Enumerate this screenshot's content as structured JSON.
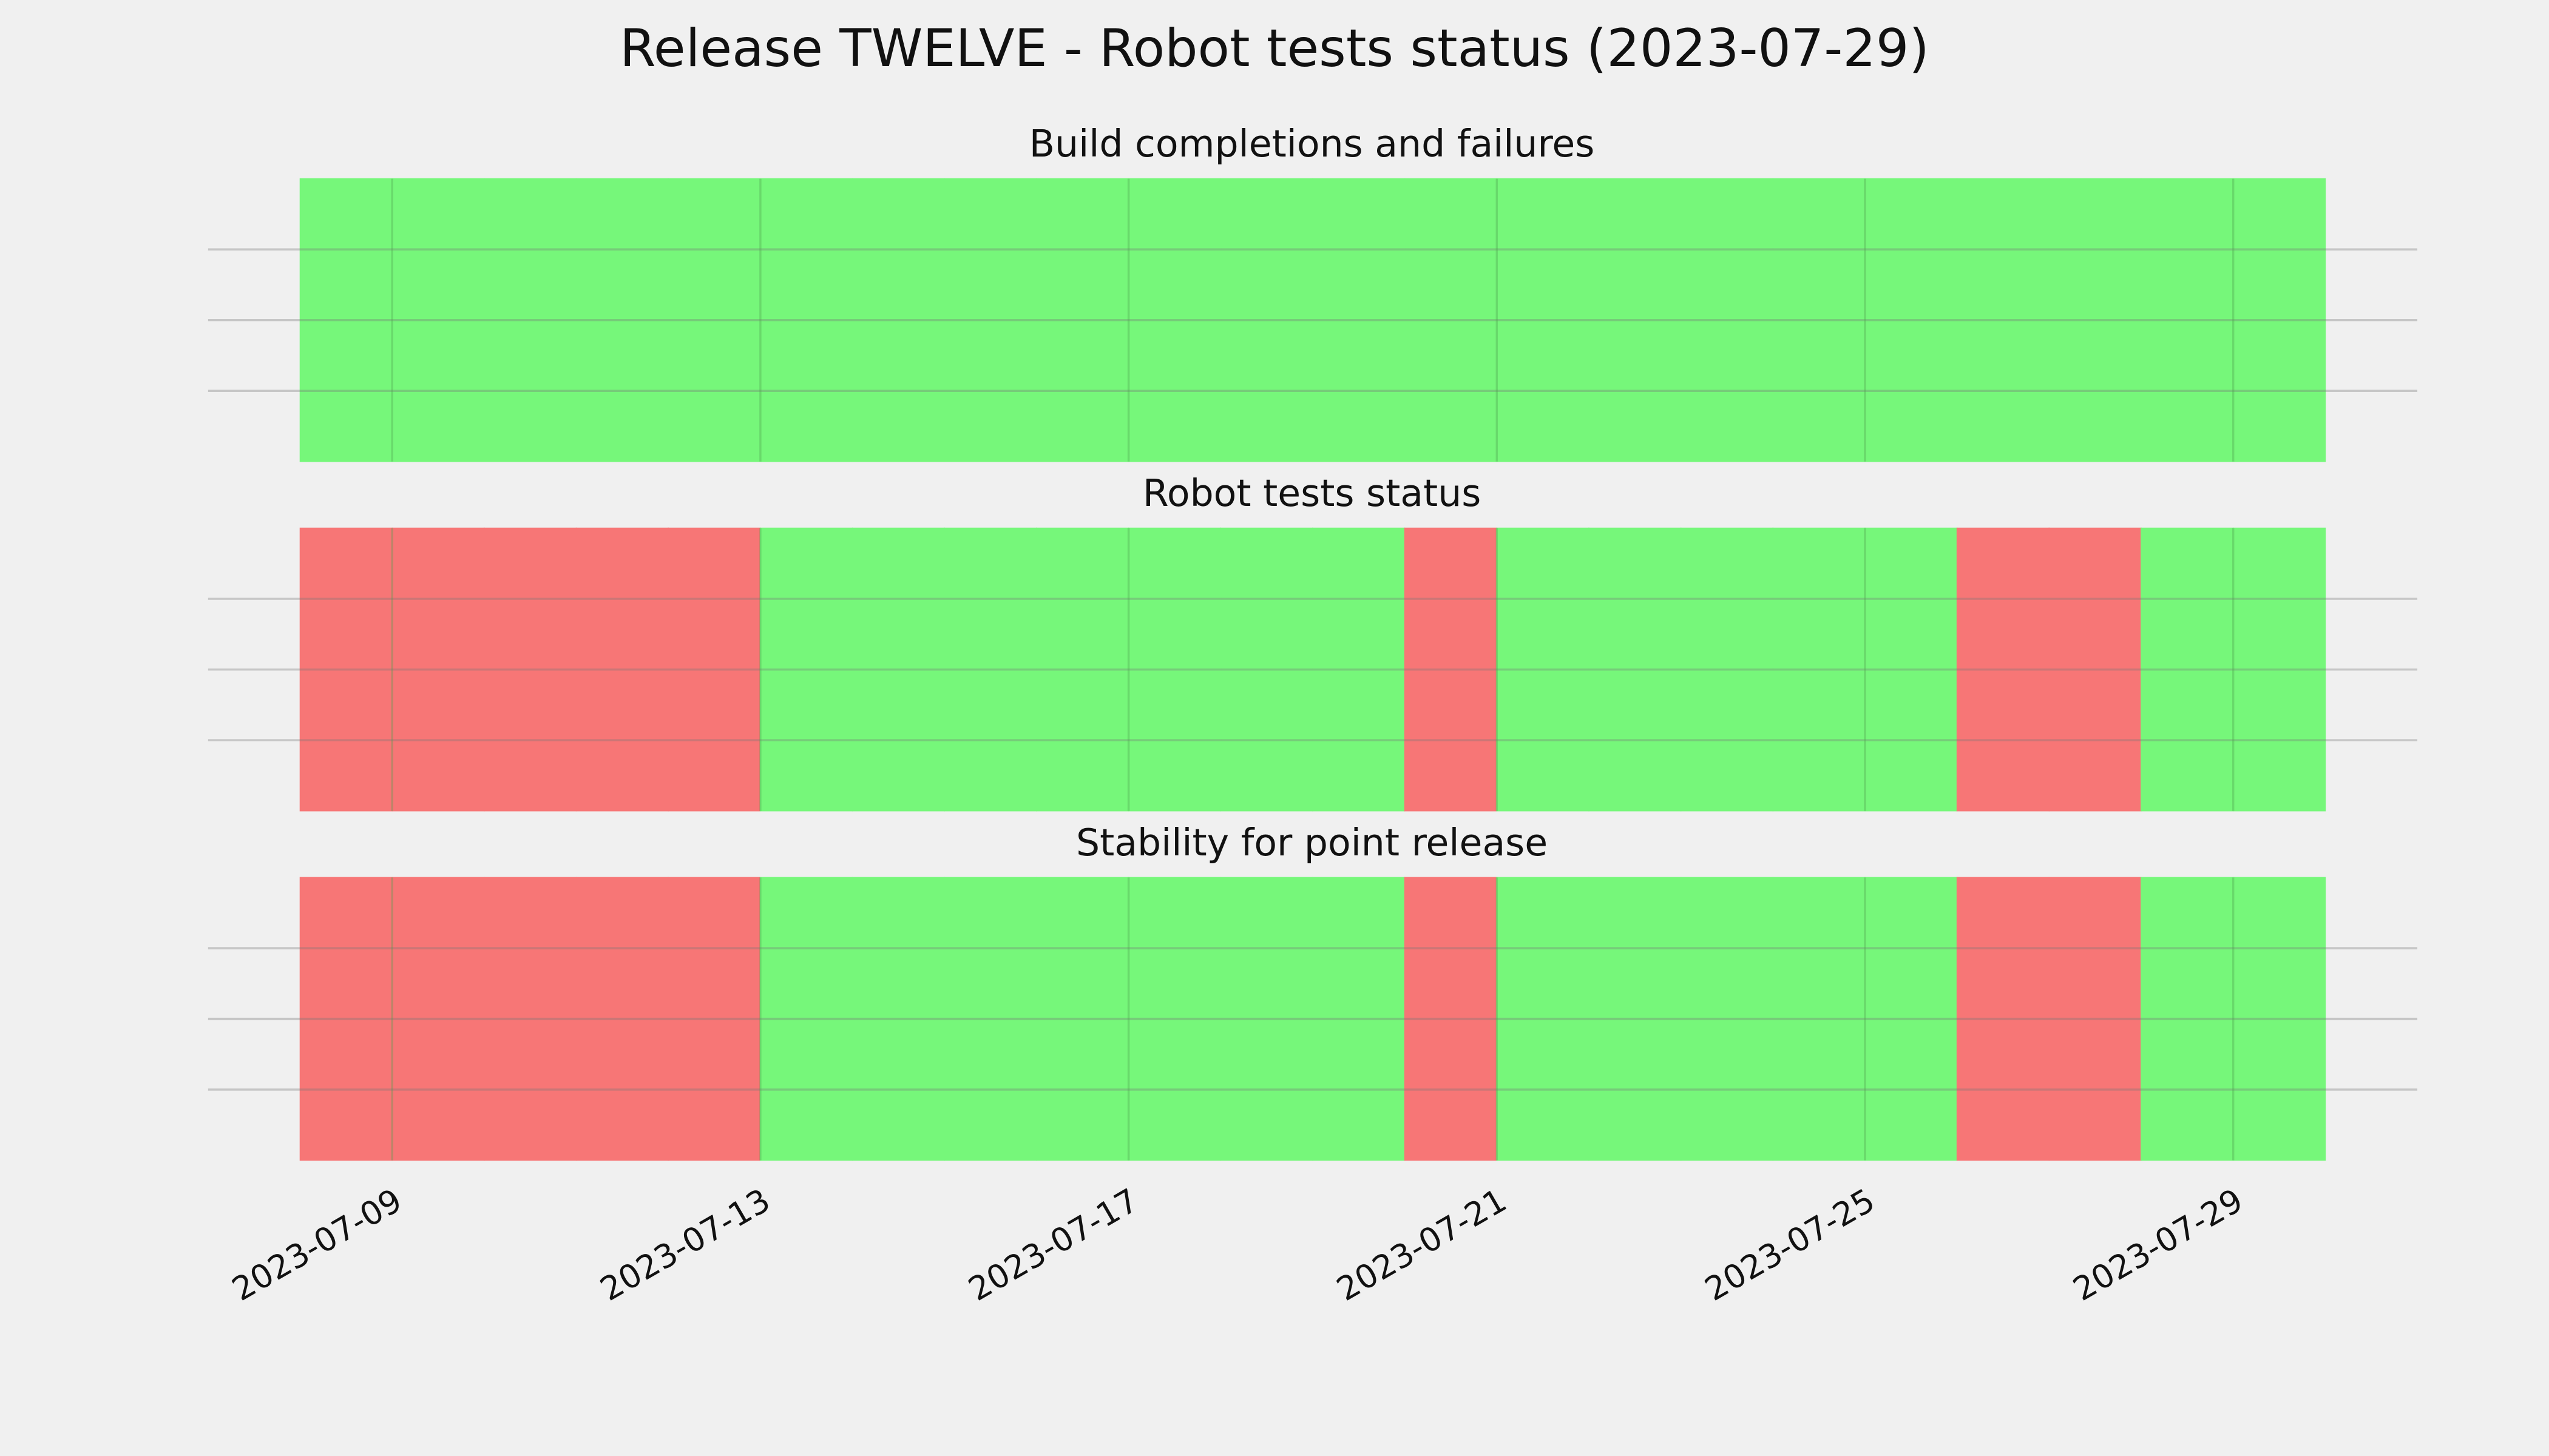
{
  "title": "Release TWELVE - Robot tests status (2023-07-29)",
  "chart_data": [
    {
      "type": "timeline",
      "title": "Build completions and failures",
      "x": [
        "2023-07-08",
        "2023-07-09",
        "2023-07-10",
        "2023-07-11",
        "2023-07-12",
        "2023-07-13",
        "2023-07-14",
        "2023-07-15",
        "2023-07-16",
        "2023-07-17",
        "2023-07-18",
        "2023-07-19",
        "2023-07-20",
        "2023-07-21",
        "2023-07-22",
        "2023-07-23",
        "2023-07-24",
        "2023-07-25",
        "2023-07-26",
        "2023-07-27",
        "2023-07-28",
        "2023-07-29"
      ],
      "values": [
        1,
        1,
        1,
        1,
        1,
        1,
        1,
        1,
        1,
        1,
        1,
        1,
        1,
        1,
        1,
        1,
        1,
        1,
        1,
        1,
        1,
        1
      ],
      "colors": [
        "#76f77a",
        "#76f77a",
        "#76f77a",
        "#76f77a",
        "#76f77a",
        "#76f77a",
        "#76f77a",
        "#76f77a",
        "#76f77a",
        "#76f77a",
        "#76f77a",
        "#76f77a",
        "#76f77a",
        "#76f77a",
        "#76f77a",
        "#76f77a",
        "#76f77a",
        "#76f77a",
        "#76f77a",
        "#76f77a",
        "#76f77a",
        "#76f77a"
      ],
      "xlim": [
        "2023-07-07",
        "2023-07-31"
      ],
      "xticks": [
        "2023-07-09",
        "2023-07-13",
        "2023-07-17",
        "2023-07-21",
        "2023-07-25",
        "2023-07-29"
      ],
      "ylim": [
        0,
        1
      ],
      "yticks": [
        0.25,
        0.5,
        0.75
      ],
      "grid": true
    },
    {
      "type": "timeline",
      "title": "Robot tests status",
      "x": [
        "2023-07-08",
        "2023-07-09",
        "2023-07-10",
        "2023-07-11",
        "2023-07-12",
        "2023-07-13",
        "2023-07-14",
        "2023-07-15",
        "2023-07-16",
        "2023-07-17",
        "2023-07-18",
        "2023-07-19",
        "2023-07-20",
        "2023-07-21",
        "2023-07-22",
        "2023-07-23",
        "2023-07-24",
        "2023-07-25",
        "2023-07-26",
        "2023-07-27",
        "2023-07-28",
        "2023-07-29"
      ],
      "values": [
        1,
        1,
        1,
        1,
        1,
        1,
        1,
        1,
        1,
        1,
        1,
        1,
        1,
        1,
        1,
        1,
        1,
        1,
        1,
        1,
        1,
        1
      ],
      "colors": [
        "#f77676",
        "#f77676",
        "#f77676",
        "#f77676",
        "#f77676",
        "#76f77a",
        "#76f77a",
        "#76f77a",
        "#76f77a",
        "#76f77a",
        "#76f77a",
        "#76f77a",
        "#f77676",
        "#76f77a",
        "#76f77a",
        "#76f77a",
        "#76f77a",
        "#76f77a",
        "#f77676",
        "#f77676",
        "#76f77a",
        "#76f77a"
      ],
      "xlim": [
        "2023-07-07",
        "2023-07-31"
      ],
      "xticks": [
        "2023-07-09",
        "2023-07-13",
        "2023-07-17",
        "2023-07-21",
        "2023-07-25",
        "2023-07-29"
      ],
      "ylim": [
        0,
        1
      ],
      "yticks": [
        0.25,
        0.5,
        0.75
      ],
      "grid": true
    },
    {
      "type": "timeline",
      "title": "Stability for point release",
      "x": [
        "2023-07-08",
        "2023-07-09",
        "2023-07-10",
        "2023-07-11",
        "2023-07-12",
        "2023-07-13",
        "2023-07-14",
        "2023-07-15",
        "2023-07-16",
        "2023-07-17",
        "2023-07-18",
        "2023-07-19",
        "2023-07-20",
        "2023-07-21",
        "2023-07-22",
        "2023-07-23",
        "2023-07-24",
        "2023-07-25",
        "2023-07-26",
        "2023-07-27",
        "2023-07-28",
        "2023-07-29"
      ],
      "values": [
        1,
        1,
        1,
        1,
        1,
        1,
        1,
        1,
        1,
        1,
        1,
        1,
        1,
        1,
        1,
        1,
        1,
        1,
        1,
        1,
        1,
        1
      ],
      "colors": [
        "#f77676",
        "#f77676",
        "#f77676",
        "#f77676",
        "#f77676",
        "#76f77a",
        "#76f77a",
        "#76f77a",
        "#76f77a",
        "#76f77a",
        "#76f77a",
        "#76f77a",
        "#f77676",
        "#76f77a",
        "#76f77a",
        "#76f77a",
        "#76f77a",
        "#76f77a",
        "#f77676",
        "#f77676",
        "#76f77a",
        "#76f77a"
      ],
      "xlim": [
        "2023-07-07",
        "2023-07-31"
      ],
      "xticks": [
        "2023-07-09",
        "2023-07-13",
        "2023-07-17",
        "2023-07-21",
        "2023-07-25",
        "2023-07-29"
      ],
      "ylim": [
        0,
        1
      ],
      "yticks": [
        0.25,
        0.5,
        0.75
      ],
      "grid": true,
      "show_xtick_labels": true
    }
  ]
}
